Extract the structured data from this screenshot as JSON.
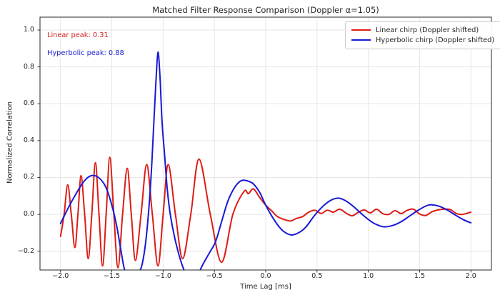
{
  "chart_data": {
    "type": "line",
    "title": "Matched Filter Response Comparison (Doppler α=1.05)",
    "xlabel": "Time Lag [ms]",
    "ylabel": "Normalized Correlation",
    "xlim": [
      -2.2,
      2.2
    ],
    "ylim": [
      -0.302,
      1.07
    ],
    "grid": true,
    "legend_position": "upper right",
    "xticks": {
      "values": [
        -2.0,
        -1.5,
        -1.0,
        -0.5,
        0.0,
        0.5,
        1.0,
        1.5,
        2.0
      ],
      "labels": [
        "−2.0",
        "−1.5",
        "−1.0",
        "−0.5",
        "0.0",
        "0.5",
        "1.0",
        "1.5",
        "2.0"
      ]
    },
    "yticks": {
      "values": [
        -0.2,
        0.0,
        0.2,
        0.4,
        0.6,
        0.8,
        1.0
      ],
      "labels": [
        "−0.2",
        "0.0",
        "0.2",
        "0.4",
        "0.6",
        "0.8",
        "1.0"
      ]
    },
    "annotations": [
      {
        "text": "Linear peak: 0.31",
        "color": "#d62020",
        "x": -2.1,
        "y": 0.97
      },
      {
        "text": "Hyperbolic peak: 0.88",
        "color": "#1c1ccd",
        "x": -2.1,
        "y": 0.87
      }
    ],
    "series": [
      {
        "name": "Linear chirp (Doppler shifted)",
        "color": "#dd1c15",
        "peak_value": 0.31,
        "points": [
          [
            -2.0,
            -0.12
          ],
          [
            -1.965,
            0.0
          ],
          [
            -1.93,
            0.16
          ],
          [
            -1.895,
            0.0
          ],
          [
            -1.86,
            -0.18
          ],
          [
            -1.83,
            0.0
          ],
          [
            -1.8,
            0.21
          ],
          [
            -1.765,
            0.0
          ],
          [
            -1.73,
            -0.24
          ],
          [
            -1.695,
            0.0
          ],
          [
            -1.66,
            0.28
          ],
          [
            -1.625,
            0.0
          ],
          [
            -1.59,
            -0.28
          ],
          [
            -1.555,
            0.0
          ],
          [
            -1.52,
            0.31
          ],
          [
            -1.48,
            0.0
          ],
          [
            -1.44,
            -0.29
          ],
          [
            -1.395,
            0.0
          ],
          [
            -1.35,
            0.25
          ],
          [
            -1.31,
            0.0
          ],
          [
            -1.27,
            -0.25
          ],
          [
            -1.215,
            0.0
          ],
          [
            -1.16,
            0.27
          ],
          [
            -1.105,
            0.0
          ],
          [
            -1.05,
            -0.28
          ],
          [
            -1.0,
            0.0
          ],
          [
            -0.95,
            0.27
          ],
          [
            -0.88,
            0.0
          ],
          [
            -0.81,
            -0.24
          ],
          [
            -0.73,
            0.0
          ],
          [
            -0.65,
            0.3
          ],
          [
            -0.54,
            0.0
          ],
          [
            -0.43,
            -0.26
          ],
          [
            -0.32,
            0.0
          ],
          [
            -0.21,
            0.125
          ],
          [
            -0.17,
            0.112
          ],
          [
            -0.12,
            0.138
          ],
          [
            -0.06,
            0.092
          ],
          [
            0.0,
            0.05
          ],
          [
            0.06,
            0.018
          ],
          [
            0.11,
            -0.01
          ],
          [
            0.17,
            -0.026
          ],
          [
            0.24,
            -0.036
          ],
          [
            0.3,
            -0.022
          ],
          [
            0.36,
            -0.012
          ],
          [
            0.42,
            0.012
          ],
          [
            0.48,
            0.022
          ],
          [
            0.54,
            0.005
          ],
          [
            0.6,
            0.022
          ],
          [
            0.66,
            0.012
          ],
          [
            0.72,
            0.028
          ],
          [
            0.78,
            0.008
          ],
          [
            0.84,
            -0.008
          ],
          [
            0.9,
            0.01
          ],
          [
            0.96,
            0.024
          ],
          [
            1.02,
            0.008
          ],
          [
            1.08,
            0.028
          ],
          [
            1.14,
            0.004
          ],
          [
            1.2,
            0.0
          ],
          [
            1.26,
            0.02
          ],
          [
            1.32,
            0.004
          ],
          [
            1.38,
            0.022
          ],
          [
            1.44,
            0.028
          ],
          [
            1.5,
            0.002
          ],
          [
            1.56,
            -0.006
          ],
          [
            1.62,
            0.014
          ],
          [
            1.68,
            0.024
          ],
          [
            1.74,
            0.028
          ],
          [
            1.8,
            0.026
          ],
          [
            1.86,
            0.004
          ],
          [
            1.92,
            0.0
          ],
          [
            2.0,
            0.012
          ]
        ]
      },
      {
        "name": "Hyperbolic chirp (Doppler shifted)",
        "color": "#1818d6",
        "peak_value": 0.88,
        "points": [
          [
            -2.0,
            -0.05
          ],
          [
            -1.92,
            0.04
          ],
          [
            -1.84,
            0.12
          ],
          [
            -1.77,
            0.18
          ],
          [
            -1.7,
            0.21
          ],
          [
            -1.63,
            0.2
          ],
          [
            -1.56,
            0.15
          ],
          [
            -1.5,
            0.05
          ],
          [
            -1.45,
            -0.07
          ],
          [
            -1.41,
            -0.2
          ],
          [
            -1.37,
            -0.31
          ],
          [
            -1.3,
            -0.37
          ],
          [
            -1.24,
            -0.32
          ],
          [
            -1.2,
            -0.26
          ],
          [
            -1.16,
            -0.1
          ],
          [
            -1.12,
            0.18
          ],
          [
            -1.09,
            0.5
          ],
          [
            -1.07,
            0.72
          ],
          [
            -1.05,
            0.88
          ],
          [
            -1.03,
            0.74
          ],
          [
            -1.01,
            0.5
          ],
          [
            -0.985,
            0.32
          ],
          [
            -0.96,
            0.14
          ],
          [
            -0.93,
            0.0
          ],
          [
            -0.89,
            -0.12
          ],
          [
            -0.84,
            -0.23
          ],
          [
            -0.79,
            -0.31
          ],
          [
            -0.73,
            -0.37
          ],
          [
            -0.67,
            -0.34
          ],
          [
            -0.62,
            -0.28
          ],
          [
            -0.55,
            -0.21
          ],
          [
            -0.49,
            -0.15
          ],
          [
            -0.43,
            -0.04
          ],
          [
            -0.37,
            0.07
          ],
          [
            -0.31,
            0.14
          ],
          [
            -0.26,
            0.175
          ],
          [
            -0.22,
            0.185
          ],
          [
            -0.17,
            0.18
          ],
          [
            -0.12,
            0.165
          ],
          [
            -0.06,
            0.12
          ],
          [
            0.0,
            0.05
          ],
          [
            0.06,
            -0.01
          ],
          [
            0.12,
            -0.06
          ],
          [
            0.18,
            -0.095
          ],
          [
            0.25,
            -0.112
          ],
          [
            0.32,
            -0.1
          ],
          [
            0.39,
            -0.07
          ],
          [
            0.47,
            -0.01
          ],
          [
            0.55,
            0.04
          ],
          [
            0.63,
            0.075
          ],
          [
            0.71,
            0.088
          ],
          [
            0.79,
            0.07
          ],
          [
            0.87,
            0.035
          ],
          [
            0.95,
            -0.005
          ],
          [
            1.03,
            -0.04
          ],
          [
            1.1,
            -0.06
          ],
          [
            1.16,
            -0.068
          ],
          [
            1.24,
            -0.06
          ],
          [
            1.32,
            -0.04
          ],
          [
            1.4,
            -0.01
          ],
          [
            1.48,
            0.02
          ],
          [
            1.56,
            0.045
          ],
          [
            1.62,
            0.052
          ],
          [
            1.7,
            0.042
          ],
          [
            1.78,
            0.02
          ],
          [
            1.86,
            -0.008
          ],
          [
            1.93,
            -0.03
          ],
          [
            2.0,
            -0.046
          ]
        ]
      }
    ]
  }
}
